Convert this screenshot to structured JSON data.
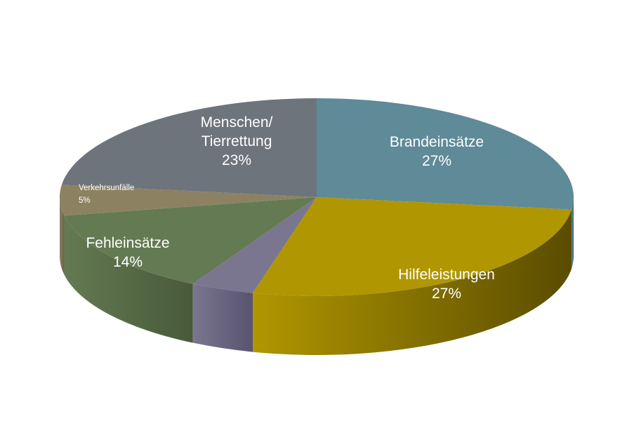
{
  "chart_data": {
    "type": "pie",
    "style": "3d",
    "title": "",
    "slices": [
      {
        "label_lines": [
          "Brandeinsätze"
        ],
        "percent_text": "27%",
        "value": 27,
        "color": "#5f8a98",
        "side_color": "#3e5e69"
      },
      {
        "label_lines": [
          "Hilfeleistungen"
        ],
        "percent_text": "27%",
        "value": 27,
        "color": "#b09600",
        "side_color": "#5a4c00"
      },
      {
        "label_lines": [],
        "percent_text": "",
        "value": 4,
        "color": "#7a7690",
        "side_color": "#585470"
      },
      {
        "label_lines": [
          "Fehleinsätze"
        ],
        "percent_text": "14%",
        "value": 14,
        "color": "#647a52",
        "side_color": "#485a3a"
      },
      {
        "label_lines": [
          "Verkehrsunfälle"
        ],
        "percent_text": "5%",
        "value": 5,
        "color": "#8c8262",
        "side_color": "#6a6248"
      },
      {
        "label_lines": [
          "Menschen/",
          "Tierrettung"
        ],
        "percent_text": "23%",
        "value": 23,
        "color": "#6e747c",
        "side_color": "#50555b"
      }
    ]
  }
}
